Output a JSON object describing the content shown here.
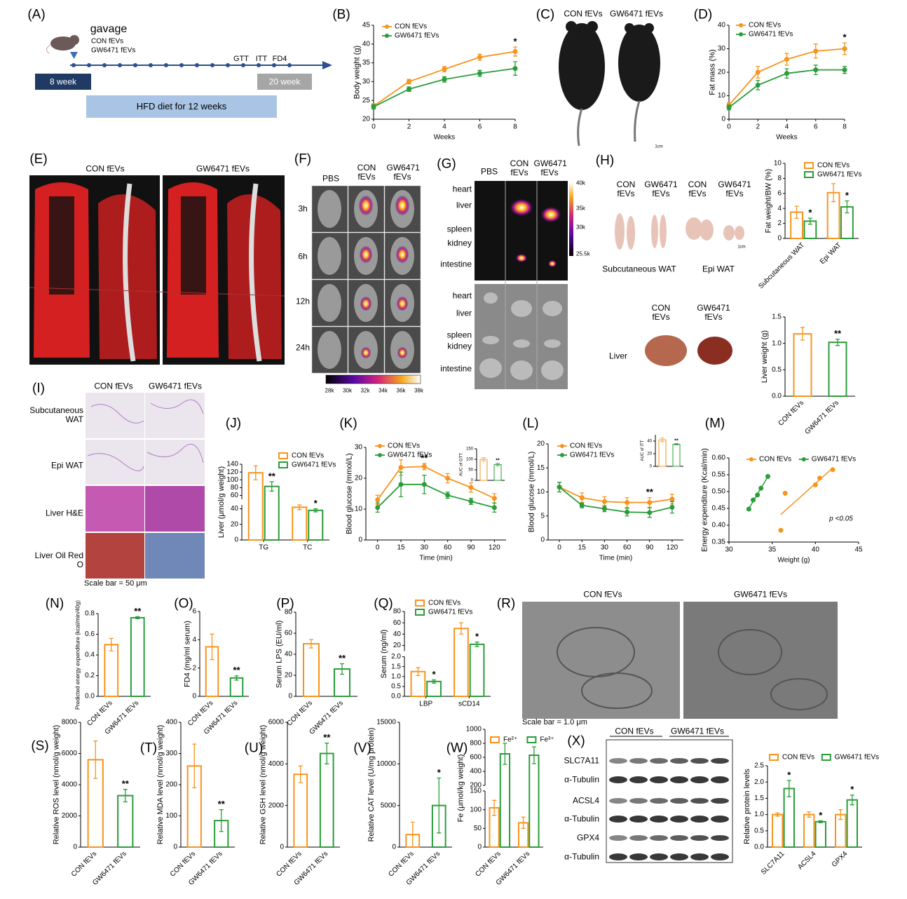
{
  "figure": {
    "panels": [
      "(A)",
      "(B)",
      "(C)",
      "(D)",
      "(E)",
      "(F)",
      "(G)",
      "(H)",
      "(I)",
      "(J)",
      "(K)",
      "(L)",
      "(M)",
      "(N)",
      "(O)",
      "(P)",
      "(Q)",
      "(R)",
      "(S)",
      "(T)",
      "(U)",
      "(V)",
      "(W)",
      "(X)"
    ],
    "A": {
      "gavage": "gavage",
      "groups": [
        "CON fEVs",
        "GW6471 fEVs"
      ],
      "timepoints": [
        "GTT",
        "ITT",
        "FD4"
      ],
      "start": "8 week",
      "end": "20 week",
      "diet": "HFD diet for 12 weeks"
    },
    "C": {
      "groups": [
        "CON fEVs",
        "GW6471 fEVs"
      ],
      "scale": "1cm"
    },
    "E": {
      "groups": [
        "CON fEVs",
        "GW6471 fEVs"
      ]
    },
    "F": {
      "columns": [
        "PBS",
        "CON fEVs",
        "GW6471 fEVs"
      ],
      "rows": [
        "3h",
        "6h",
        "12h",
        "24h"
      ],
      "scale": [
        "28k",
        "30k",
        "32k",
        "34k",
        "36k",
        "38k"
      ]
    },
    "G": {
      "columns": [
        "PBS",
        "CON fEVs",
        "GW6471 fEVs"
      ],
      "organs": [
        "heart",
        "liver",
        "spleen",
        "kidney",
        "intestine"
      ],
      "organs_photo": [
        "heart",
        "liver",
        "spleen",
        "kidney",
        "intestine"
      ],
      "scale": [
        "40k",
        "35k",
        "30k",
        "25.5k"
      ]
    },
    "H": {
      "wat_groups": [
        "CON fEVs",
        "GW6471 fEVs",
        "CON fEVs",
        "GW6471 fEVs"
      ],
      "tissues": [
        "Subcutaneous WAT",
        "Epi WAT"
      ],
      "liver_groups": [
        "CON fEVs",
        "GW6471 fEVs"
      ],
      "liver": "Liver",
      "scale": "1cm"
    },
    "I": {
      "columns": [
        "CON fEVs",
        "GW6471 fEVs"
      ],
      "rows": [
        "Subcutaneous WAT",
        "Epi WAT",
        "Liver H&E",
        "Liver Oil Red O"
      ],
      "scale": "Scale bar = 50 μm"
    },
    "R": {
      "columns": [
        "CON fEVs",
        "GW6471 fEVs"
      ],
      "scale": "Scale bar = 1.0 μm"
    },
    "X": {
      "groups": [
        "CON fEVs",
        "GW6471 fEVs"
      ],
      "proteins": [
        "SLC7A11",
        "α-Tubulin",
        "ACSL4",
        "α-Tubulin",
        "GPX4",
        "α-Tubulin"
      ]
    }
  },
  "chart_data": [
    {
      "type": "line",
      "x": [
        0,
        2,
        4,
        6,
        8
      ],
      "xlim": [
        0,
        8
      ],
      "xticks": [
        0,
        2,
        4,
        6,
        8
      ],
      "xlabel": "Weeks",
      "ylabel": "Body weight (g)",
      "ylim": [
        20,
        45
      ],
      "yticks": [
        20,
        25,
        30,
        35,
        40,
        45
      ],
      "legend": "upper left",
      "series": [
        {
          "name": "CON fEVs",
          "color": "#f7941d",
          "values": [
            23.5,
            30,
            33.3,
            36.5,
            38
          ],
          "errors": [
            0.6,
            0.6,
            0.7,
            0.8,
            1.2
          ],
          "significance": [
            null,
            null,
            null,
            null,
            "*"
          ]
        },
        {
          "name": "GW6471 fEVs",
          "color": "#2a9d3a",
          "values": [
            23.3,
            28,
            30.6,
            32.2,
            33.5
          ],
          "errors": [
            0.6,
            0.6,
            0.7,
            0.8,
            1.8
          ]
        }
      ]
    },
    {
      "type": "line",
      "x": [
        0,
        2,
        4,
        6,
        8
      ],
      "xlim": [
        0,
        8
      ],
      "xticks": [
        0,
        2,
        4,
        6,
        8
      ],
      "xlabel": "Weeks",
      "ylabel": "Fat mass (%)",
      "ylim": [
        0,
        40
      ],
      "yticks": [
        0,
        10,
        20,
        30,
        40
      ],
      "legend": "upper left",
      "series": [
        {
          "name": "CON fEVs",
          "color": "#f7941d",
          "values": [
            6,
            20,
            25.5,
            29,
            30
          ],
          "errors": [
            1,
            2.5,
            2.5,
            3,
            2.5
          ],
          "significance": [
            null,
            null,
            null,
            null,
            "*"
          ]
        },
        {
          "name": "GW6471 fEVs",
          "color": "#2a9d3a",
          "values": [
            5,
            14.5,
            19.5,
            21,
            21
          ],
          "errors": [
            1,
            2,
            2,
            2,
            1.5
          ]
        }
      ]
    },
    {
      "type": "bar",
      "categories": [
        "Subcutaneous WAT",
        "Epi WAT"
      ],
      "ylabel": "Fat weight/BW (%)",
      "ylim": [
        0,
        10
      ],
      "yticks": [
        0,
        2,
        4,
        6,
        8,
        10
      ],
      "legend": "upper right",
      "series": [
        {
          "name": "CON fEVs",
          "color": "#f7941d",
          "values": [
            3.5,
            6.1
          ],
          "errors": [
            0.8,
            1.2
          ]
        },
        {
          "name": "GW6471 fEVs",
          "color": "#2a9d3a",
          "values": [
            2.3,
            4.2
          ],
          "errors": [
            0.4,
            0.8
          ],
          "significance": [
            "*",
            "*"
          ]
        }
      ]
    },
    {
      "type": "bar",
      "categories": [
        "CON fEVs",
        "GW6471 fEVs"
      ],
      "values": [
        1.18,
        1.02
      ],
      "errors": [
        0.12,
        0.06
      ],
      "colors": [
        "#f7941d",
        "#2a9d3a"
      ],
      "significance": [
        null,
        "**"
      ],
      "ylabel": "Liver weight (g)",
      "ylim": [
        0,
        1.5
      ],
      "yticks": [
        {
          "value": 0,
          "label": "0.0"
        },
        0.5,
        {
          "value": 1,
          "label": "1.0"
        },
        1.5
      ]
    },
    {
      "type": "bar",
      "categories": [
        "TG",
        "TC"
      ],
      "ylabel": "Liver (μmol/g weight)",
      "ylim": [
        0,
        140
      ],
      "ylim_segments": [
        [
          0,
          45
        ],
        [
          50,
          140
        ]
      ],
      "yticks": [
        0,
        20,
        40,
        60,
        80,
        100,
        120,
        140
      ],
      "legend": "upper right",
      "series": [
        {
          "name": "CON fEVs",
          "color": "#f7941d",
          "values": [
            118,
            42
          ],
          "errors": [
            18,
            3
          ]
        },
        {
          "name": "GW6471 fEVs",
          "color": "#2a9d3a",
          "values": [
            83,
            38
          ],
          "errors": [
            12,
            2
          ],
          "significance": [
            "**",
            "*"
          ]
        }
      ]
    },
    {
      "type": "line",
      "categories": [
        "0",
        "15",
        "30",
        "60",
        "90",
        "120"
      ],
      "xlabel": "Time (min)",
      "ylabel": "Blood glucose (mmol/L)",
      "ylim": [
        0,
        30
      ],
      "yticks": [
        0,
        10,
        20,
        30
      ],
      "legend": "upper left",
      "series": [
        {
          "name": "CON fEVs",
          "color": "#f7941d",
          "values": [
            13,
            23.5,
            23.8,
            20,
            17,
            13.5
          ],
          "errors": [
            1.5,
            2.5,
            1,
            1.5,
            1.5,
            1.5
          ],
          "significance": [
            null,
            null,
            "**",
            null,
            null,
            null
          ]
        },
        {
          "name": "GW6471 fEVs",
          "color": "#2a9d3a",
          "values": [
            10.5,
            18,
            18,
            14.5,
            12.5,
            10.5
          ],
          "errors": [
            1.5,
            4,
            3,
            1,
            1,
            1.5
          ]
        }
      ]
    },
    {
      "type": "bar",
      "values": [
        100,
        75
      ],
      "errors": [
        8,
        6
      ],
      "colors": [
        "#f7941d",
        "#2a9d3a"
      ],
      "significance": [
        null,
        "**"
      ],
      "ylabel": "AUC of GTT",
      "ylim": [
        0,
        150
      ],
      "yticks": [
        0,
        50,
        100,
        150
      ]
    },
    {
      "type": "line",
      "categories": [
        "0",
        "15",
        "30",
        "60",
        "90",
        "120"
      ],
      "xlabel": "Time (min)",
      "ylabel": "Blood glucose (mmol/L)",
      "ylim": [
        0,
        20
      ],
      "yticks": [
        0,
        5,
        10,
        15,
        20
      ],
      "legend": "upper left",
      "series": [
        {
          "name": "CON fEVs",
          "color": "#f7941d",
          "values": [
            11,
            8.8,
            8,
            7.8,
            7.8,
            8.5
          ],
          "errors": [
            1,
            1,
            1,
            1,
            1,
            1
          ],
          "significance": [
            null,
            null,
            null,
            null,
            "**",
            null
          ]
        },
        {
          "name": "GW6471 fEVs",
          "color": "#2a9d3a",
          "values": [
            11,
            7.2,
            6.5,
            5.8,
            5.7,
            6.8
          ],
          "errors": [
            1,
            0.5,
            0.6,
            0.8,
            1,
            1.2
          ]
        }
      ]
    },
    {
      "type": "bar",
      "values": [
        42,
        35
      ],
      "errors": [
        3,
        1
      ],
      "colors": [
        "#f7941d",
        "#2a9d3a"
      ],
      "significance": [
        null,
        "**"
      ],
      "ylabel": "AUC of ITT",
      "ylim": [
        0,
        50
      ],
      "yticks": [
        0,
        20,
        40
      ]
    },
    {
      "type": "scatter",
      "xlabel": "Weight (g)",
      "ylabel": "Energy expenditure (Kcal/min)",
      "xlim": [
        30,
        45
      ],
      "xticks": [
        30,
        35,
        40,
        45
      ],
      "ylim": [
        0.35,
        0.6
      ],
      "yticks": [
        0.35,
        {
          "value": 0.4,
          "label": "0.40"
        },
        0.45,
        {
          "value": 0.5,
          "label": "0.50"
        },
        0.55,
        {
          "value": 0.6,
          "label": "0.60"
        }
      ],
      "legend": "upper center",
      "annotation": "p <0.05",
      "series": [
        {
          "name": "CON fEVs",
          "color": "#f7941d",
          "x": [
            36,
            36.5,
            40,
            40.5,
            42
          ],
          "values": [
            0.385,
            0.495,
            0.52,
            0.54,
            0.565
          ]
        },
        {
          "name": "GW6471 fEVs",
          "color": "#2a9d3a",
          "x": [
            32.3,
            32.8,
            33.3,
            33.7,
            34.5
          ],
          "values": [
            0.448,
            0.475,
            0.49,
            0.51,
            0.545
          ]
        }
      ]
    },
    {
      "type": "bar",
      "categories": [
        "CON fEVs",
        "GW6471 fEVs"
      ],
      "values": [
        0.5,
        0.76
      ],
      "errors": [
        0.06,
        0.01
      ],
      "colors": [
        "#f7941d",
        "#2a9d3a"
      ],
      "significance": [
        null,
        "**"
      ],
      "ylabel": "Predicted energy expenditure (kcal/min/40g)",
      "ylim": [
        0,
        0.8
      ],
      "yticks": [
        {
          "value": 0,
          "label": "0.0"
        },
        0.2,
        0.4,
        0.6,
        0.8
      ]
    },
    {
      "type": "bar",
      "categories": [
        "CON fEVs",
        "GW6471 fEVs"
      ],
      "values": [
        3.5,
        1.3
      ],
      "errors": [
        0.9,
        0.15
      ],
      "colors": [
        "#f7941d",
        "#2a9d3a"
      ],
      "significance": [
        null,
        "**"
      ],
      "ylabel": "FD4 (mg/ml serum)",
      "ylim": [
        0,
        6
      ],
      "yticks": [
        0,
        2,
        4,
        6
      ]
    },
    {
      "type": "bar",
      "categories": [
        "CON fEVs",
        "GW6471 fEVs"
      ],
      "values": [
        50,
        26
      ],
      "errors": [
        4,
        5
      ],
      "colors": [
        "#f7941d",
        "#2a9d3a"
      ],
      "significance": [
        null,
        "**"
      ],
      "ylabel": "Serum LPS (EU/ml)",
      "ylim": [
        0,
        80
      ],
      "yticks": [
        0,
        20,
        40,
        60,
        80
      ]
    },
    {
      "type": "bar",
      "categories": [
        "LBP",
        "sCD14"
      ],
      "ylabel": "Serum (ng/ml)",
      "ylim": [
        0,
        80
      ],
      "ylim_segments": [
        [
          0,
          2
        ],
        [
          10,
          80
        ]
      ],
      "yticks": [
        {
          "value": 0,
          "label": "0.0"
        },
        0.5,
        {
          "value": 1,
          "label": "1.0"
        },
        1.5,
        {
          "value": 2,
          "label": "2.0"
        },
        20,
        40,
        60,
        80
      ],
      "legend": "upper left",
      "series": [
        {
          "name": "CON fEVs",
          "color": "#f7941d",
          "values": [
            1.25,
            50
          ],
          "errors": [
            0.2,
            10
          ]
        },
        {
          "name": "GW6471 fEVs",
          "color": "#2a9d3a",
          "values": [
            0.75,
            22
          ],
          "errors": [
            0.08,
            4
          ],
          "significance": [
            "*",
            "*"
          ]
        }
      ]
    },
    {
      "type": "bar",
      "categories": [
        "CON fEVs",
        "GW6471 fEVs"
      ],
      "values": [
        5600,
        3300
      ],
      "errors": [
        1200,
        400
      ],
      "colors": [
        "#f7941d",
        "#2a9d3a"
      ],
      "significance": [
        null,
        "**"
      ],
      "ylabel": "Relative ROS level (nmol/g weight)",
      "ylim": [
        0,
        8000
      ],
      "yticks": [
        0,
        2000,
        4000,
        6000,
        8000
      ]
    },
    {
      "type": "bar",
      "categories": [
        "CON fEVs",
        "GW6471 fEVs"
      ],
      "values": [
        260,
        85
      ],
      "errors": [
        70,
        35
      ],
      "colors": [
        "#f7941d",
        "#2a9d3a"
      ],
      "significance": [
        null,
        "**"
      ],
      "ylabel": "Relative MDA level (nmol/g weight)",
      "ylim": [
        0,
        400
      ],
      "yticks": [
        0,
        100,
        200,
        300,
        400
      ]
    },
    {
      "type": "bar",
      "categories": [
        "CON fEVs",
        "GW6471 fEVs"
      ],
      "values": [
        3500,
        4500
      ],
      "errors": [
        400,
        500
      ],
      "colors": [
        "#f7941d",
        "#2a9d3a"
      ],
      "significance": [
        null,
        "**"
      ],
      "ylabel": "Relative GSH level (nmol/g weight)",
      "ylim": [
        0,
        6000
      ],
      "yticks": [
        0,
        2000,
        4000,
        6000
      ]
    },
    {
      "type": "bar",
      "categories": [
        "CON fEVs",
        "GW6471 fEVs"
      ],
      "values": [
        1500,
        5000
      ],
      "errors": [
        1500,
        3300
      ],
      "colors": [
        "#f7941d",
        "#2a9d3a"
      ],
      "significance": [
        null,
        "*"
      ],
      "ylabel": "Relative CAT level (U/mg protein)",
      "ylim": [
        0,
        15000
      ],
      "yticks": [
        0,
        5000,
        10000,
        15000
      ]
    },
    {
      "type": "bar",
      "categories": [
        "CON fEVs",
        "GW6471 fEVs"
      ],
      "ylabel": "Fe (μmol/kg weight)",
      "ylim": [
        0,
        1000
      ],
      "ylim_segments": [
        [
          0,
          150
        ],
        [
          200,
          1000
        ]
      ],
      "yticks": [
        0,
        50,
        100,
        150,
        200,
        400,
        600,
        800,
        1000
      ],
      "legend": "upper left",
      "series": [
        {
          "name": "Fe²⁺",
          "color": "#f7941d",
          "values": [
            105,
            65
          ],
          "errors": [
            20,
            15
          ]
        },
        {
          "name": "Fe³⁺",
          "color": "#2a9d3a",
          "values": [
            650,
            630
          ],
          "errors": [
            150,
            120
          ]
        }
      ]
    },
    {
      "type": "bar",
      "categories": [
        "SLC7A11",
        "ACSL4",
        "GPX4"
      ],
      "ylabel": "Relative protein levels",
      "ylim": [
        0,
        2.5
      ],
      "yticks": [
        {
          "value": 0,
          "label": "0.0"
        },
        0.5,
        {
          "value": 1,
          "label": "1.0"
        },
        1.5,
        {
          "value": 2,
          "label": "2.0"
        },
        2.5
      ],
      "legend": "upper left",
      "series": [
        {
          "name": "CON fEVs",
          "color": "#f7941d",
          "values": [
            1,
            1,
            1
          ],
          "errors": [
            0.05,
            0.08,
            0.15
          ]
        },
        {
          "name": "GW6471 fEVs",
          "color": "#2a9d3a",
          "values": [
            1.8,
            0.78,
            1.45
          ],
          "errors": [
            0.25,
            0.03,
            0.15
          ],
          "significance": [
            "*",
            "*",
            "*"
          ]
        }
      ]
    }
  ]
}
